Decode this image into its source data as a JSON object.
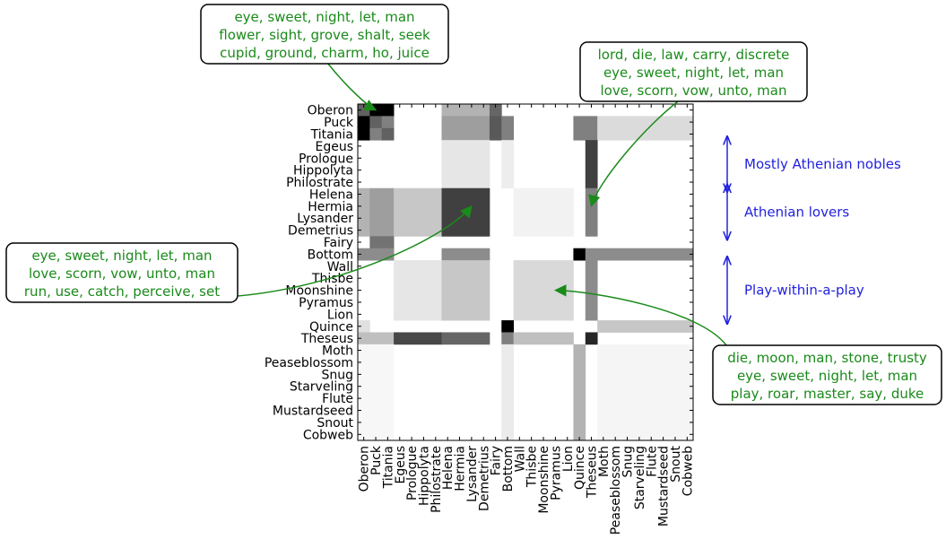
{
  "chart_data": {
    "type": "heatmap",
    "rows": [
      "Oberon",
      "Puck",
      "Titania",
      "Egeus",
      "Prologue",
      "Hippolyta",
      "Philostrate",
      "Helena",
      "Hermia",
      "Lysander",
      "Demetrius",
      "Fairy",
      "Bottom",
      "Wall",
      "Thisbe",
      "Moonshine",
      "Pyramus",
      "Lion",
      "Quince",
      "Theseus",
      "Moth",
      "Peaseblossom",
      "Snug",
      "Starveling",
      "Flute",
      "Mustardseed",
      "Snout",
      "Cobweb"
    ],
    "columns": [
      "Oberon",
      "Puck",
      "Titania",
      "Egeus",
      "Prologue",
      "Hippolyta",
      "Philostrate",
      "Helena",
      "Hermia",
      "Lysander",
      "Demetrius",
      "Fairy",
      "Bottom",
      "Wall",
      "Thisbe",
      "Moonshine",
      "Pyramus",
      "Lion",
      "Quince",
      "Theseus",
      "Moth",
      "Peaseblossom",
      "Snug",
      "Starveling",
      "Flute",
      "Mustardseed",
      "Snout",
      "Cobweb"
    ],
    "colormap": "gray_r",
    "value_range": [
      0,
      1
    ],
    "blocks": [
      {
        "r0": 0,
        "r1": 0,
        "c0": 0,
        "c1": 0,
        "v": 0.62
      },
      {
        "r0": 0,
        "r1": 0,
        "c0": 1,
        "c1": 1,
        "v": 1.0
      },
      {
        "r0": 0,
        "r1": 0,
        "c0": 2,
        "c1": 2,
        "v": 1.0
      },
      {
        "r0": 0,
        "r1": 0,
        "c0": 7,
        "c1": 10,
        "v": 0.3
      },
      {
        "r0": 0,
        "r1": 0,
        "c0": 11,
        "c1": 11,
        "v": 0.6
      },
      {
        "r0": 1,
        "r1": 1,
        "c0": 0,
        "c1": 0,
        "v": 1.0
      },
      {
        "r0": 1,
        "r1": 1,
        "c0": 1,
        "c1": 1,
        "v": 0.62
      },
      {
        "r0": 1,
        "r1": 1,
        "c0": 2,
        "c1": 2,
        "v": 0.5
      },
      {
        "r0": 2,
        "r1": 2,
        "c0": 0,
        "c1": 0,
        "v": 1.0
      },
      {
        "r0": 2,
        "r1": 2,
        "c0": 1,
        "c1": 1,
        "v": 0.5
      },
      {
        "r0": 2,
        "r1": 2,
        "c0": 2,
        "c1": 2,
        "v": 0.62
      },
      {
        "r0": 1,
        "r1": 2,
        "c0": 7,
        "c1": 10,
        "v": 0.38
      },
      {
        "r0": 1,
        "r1": 2,
        "c0": 11,
        "c1": 11,
        "v": 0.65
      },
      {
        "r0": 1,
        "r1": 2,
        "c0": 12,
        "c1": 12,
        "v": 0.5
      },
      {
        "r0": 1,
        "r1": 2,
        "c0": 18,
        "c1": 18,
        "v": 0.5
      },
      {
        "r0": 1,
        "r1": 2,
        "c0": 19,
        "c1": 19,
        "v": 0.5
      },
      {
        "r0": 1,
        "r1": 2,
        "c0": 20,
        "c1": 27,
        "v": 0.14
      },
      {
        "r0": 3,
        "r1": 6,
        "c0": 7,
        "c1": 10,
        "v": 0.1
      },
      {
        "r0": 3,
        "r1": 6,
        "c0": 12,
        "c1": 12,
        "v": 0.07
      },
      {
        "r0": 3,
        "r1": 6,
        "c0": 19,
        "c1": 19,
        "v": 0.75
      },
      {
        "r0": 7,
        "r1": 10,
        "c0": 0,
        "c1": 0,
        "v": 0.3
      },
      {
        "r0": 7,
        "r1": 10,
        "c0": 1,
        "c1": 2,
        "v": 0.38
      },
      {
        "r0": 7,
        "r1": 10,
        "c0": 3,
        "c1": 6,
        "v": 0.22
      },
      {
        "r0": 7,
        "r1": 10,
        "c0": 7,
        "c1": 10,
        "v": 0.75
      },
      {
        "r0": 7,
        "r1": 10,
        "c0": 13,
        "c1": 17,
        "v": 0.05
      },
      {
        "r0": 7,
        "r1": 10,
        "c0": 19,
        "c1": 19,
        "v": 0.5
      },
      {
        "r0": 11,
        "r1": 11,
        "c0": 1,
        "c1": 2,
        "v": 0.55
      },
      {
        "r0": 12,
        "r1": 12,
        "c0": 0,
        "c1": 0,
        "v": 0.45
      },
      {
        "r0": 12,
        "r1": 12,
        "c0": 1,
        "c1": 2,
        "v": 0.45
      },
      {
        "r0": 12,
        "r1": 12,
        "c0": 7,
        "c1": 10,
        "v": 0.45
      },
      {
        "r0": 12,
        "r1": 12,
        "c0": 18,
        "c1": 18,
        "v": 1.0
      },
      {
        "r0": 12,
        "r1": 12,
        "c0": 19,
        "c1": 19,
        "v": 0.45
      },
      {
        "r0": 12,
        "r1": 12,
        "c0": 20,
        "c1": 27,
        "v": 0.45
      },
      {
        "r0": 13,
        "r1": 17,
        "c0": 3,
        "c1": 6,
        "v": 0.1
      },
      {
        "r0": 13,
        "r1": 17,
        "c0": 7,
        "c1": 10,
        "v": 0.22
      },
      {
        "r0": 13,
        "r1": 17,
        "c0": 13,
        "c1": 17,
        "v": 0.15
      },
      {
        "r0": 13,
        "r1": 17,
        "c0": 19,
        "c1": 19,
        "v": 0.45
      },
      {
        "r0": 18,
        "r1": 18,
        "c0": 0,
        "c1": 0,
        "v": 0.12
      },
      {
        "r0": 18,
        "r1": 18,
        "c0": 12,
        "c1": 12,
        "v": 1.0
      },
      {
        "r0": 18,
        "r1": 18,
        "c0": 20,
        "c1": 27,
        "v": 0.22
      },
      {
        "r0": 19,
        "r1": 19,
        "c0": 0,
        "c1": 0,
        "v": 0.25
      },
      {
        "r0": 19,
        "r1": 19,
        "c0": 1,
        "c1": 2,
        "v": 0.25
      },
      {
        "r0": 19,
        "r1": 19,
        "c0": 3,
        "c1": 6,
        "v": 0.72
      },
      {
        "r0": 19,
        "r1": 19,
        "c0": 7,
        "c1": 10,
        "v": 0.6
      },
      {
        "r0": 19,
        "r1": 19,
        "c0": 12,
        "c1": 12,
        "v": 0.5
      },
      {
        "r0": 19,
        "r1": 19,
        "c0": 13,
        "c1": 17,
        "v": 0.25
      },
      {
        "r0": 19,
        "r1": 19,
        "c0": 19,
        "c1": 19,
        "v": 0.85
      },
      {
        "r0": 20,
        "r1": 27,
        "c0": 0,
        "c1": 2,
        "v": 0.03
      },
      {
        "r0": 20,
        "r1": 27,
        "c0": 12,
        "c1": 12,
        "v": 0.08
      },
      {
        "r0": 20,
        "r1": 27,
        "c0": 18,
        "c1": 18,
        "v": 0.3
      },
      {
        "r0": 20,
        "r1": 27,
        "c0": 20,
        "c1": 27,
        "v": 0.04
      }
    ],
    "annotations": [
      {
        "text": [
          "eye, sweet, night, let, man",
          "flower, sight, grove, shalt, seek",
          "cupid, ground, charm, ho, juice"
        ],
        "points_to": [
          "Oberon",
          "Puck"
        ]
      },
      {
        "text": [
          "lord, die, law, carry, discrete",
          "eye, sweet, night, let, man",
          "love, scorn, vow, unto, man"
        ],
        "points_to": [
          "Hermia",
          "Theseus"
        ]
      },
      {
        "text": [
          "eye, sweet, night, let, man",
          "love, scorn, vow, unto, man",
          "run, use, catch, perceive, set"
        ],
        "points_to": [
          "Hermia",
          "Lysander"
        ]
      },
      {
        "text": [
          "die, moon, man, stone, trusty",
          "eye, sweet, night, let, man",
          "play, roar, master, say, duke"
        ],
        "points_to": [
          "Moonshine",
          "Pyramus"
        ]
      }
    ],
    "group_labels": [
      {
        "text": "Mostly Athenian nobles",
        "rows": [
          "Egeus",
          "Philostrate"
        ]
      },
      {
        "text": "Athenian lovers",
        "rows": [
          "Helena",
          "Demetrius"
        ]
      },
      {
        "text": "Play-within-a-play",
        "rows": [
          "Wall",
          "Lion"
        ]
      }
    ],
    "colors": {
      "annotation_text": "#1a8a1a",
      "arrow": "#1a8a1a",
      "group_label": "#2222dd",
      "box_border": "#000000"
    }
  }
}
